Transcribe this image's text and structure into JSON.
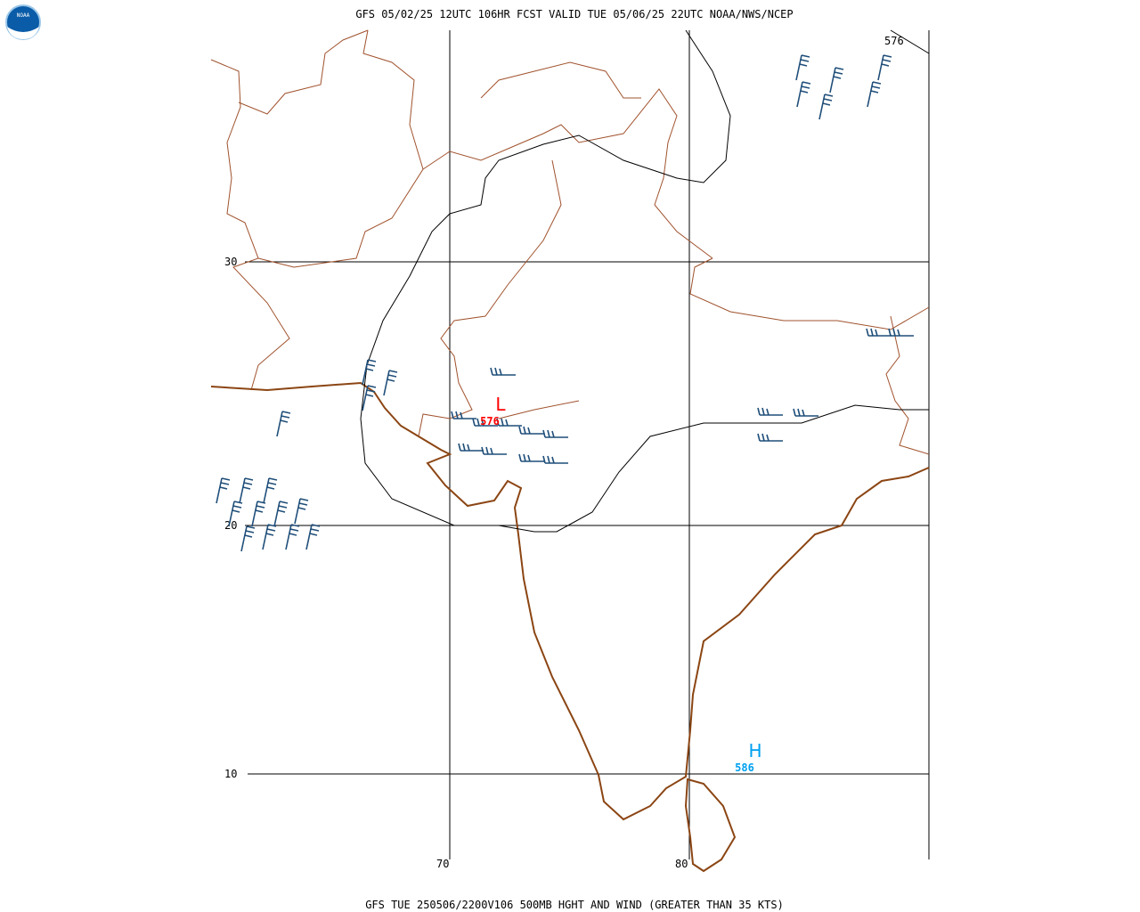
{
  "header": {
    "logo": "NOAA",
    "title": "GFS 05/02/25 12UTC 106HR FCST VALID TUE 05/06/25 22UTC NOAA/NWS/NCEP"
  },
  "map": {
    "latitude_labels": [
      "30",
      "20",
      "10"
    ],
    "longitude_labels": [
      "70",
      "80"
    ],
    "contour_labels": [
      "576"
    ],
    "pressure_centers": [
      {
        "symbol": "L",
        "value": "576"
      },
      {
        "symbol": "H",
        "value": "586"
      }
    ]
  },
  "footer": {
    "caption": "GFS TUE 250506/2200V106 500MB HGHT AND WIND (GREATER THAN 35 KTS)"
  }
}
